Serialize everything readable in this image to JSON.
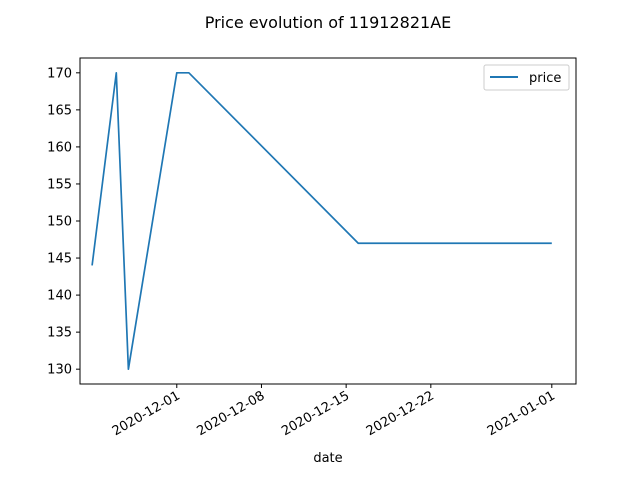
{
  "chart_data": {
    "type": "line",
    "title": "Price evolution of 11912821AE",
    "xlabel": "date",
    "ylabel": "",
    "xlim": [
      "2020-11-23",
      "2021-01-03"
    ],
    "ylim": [
      128,
      172
    ],
    "xticks": [
      {
        "date": "2020-12-01",
        "label": "2020-12-01"
      },
      {
        "date": "2020-12-08",
        "label": "2020-12-08"
      },
      {
        "date": "2020-12-15",
        "label": "2020-12-15"
      },
      {
        "date": "2020-12-22",
        "label": "2020-12-22"
      },
      {
        "date": "2021-01-01",
        "label": "2021-01-01"
      }
    ],
    "yticks": [
      130,
      135,
      140,
      145,
      150,
      155,
      160,
      165,
      170
    ],
    "grid": false,
    "legend_position": "top-right",
    "series": [
      {
        "name": "price",
        "color": "#1f77b4",
        "points": [
          {
            "x": "2020-11-24",
            "y": 144
          },
          {
            "x": "2020-11-26",
            "y": 170
          },
          {
            "x": "2020-11-27",
            "y": 130
          },
          {
            "x": "2020-12-01",
            "y": 170
          },
          {
            "x": "2020-12-02",
            "y": 170
          },
          {
            "x": "2020-12-16",
            "y": 147
          },
          {
            "x": "2021-01-01",
            "y": 147
          }
        ]
      }
    ]
  }
}
